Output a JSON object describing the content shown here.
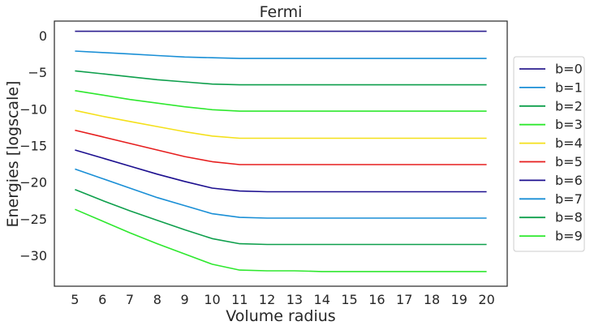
{
  "chart_data": {
    "type": "line",
    "title": "Fermi",
    "xlabel": "Volume radius",
    "ylabel": "Energies [logscale]",
    "x": [
      5,
      6,
      7,
      8,
      9,
      10,
      11,
      12,
      13,
      14,
      15,
      16,
      17,
      18,
      19,
      20
    ],
    "xlim": [
      4.25,
      20.75
    ],
    "ylim": [
      -34.2,
      2.0
    ],
    "xticks": [
      "5",
      "6",
      "7",
      "8",
      "9",
      "10",
      "11",
      "12",
      "13",
      "14",
      "15",
      "16",
      "17",
      "18",
      "19",
      "20"
    ],
    "yticks": [
      {
        "value": 0,
        "label": "0"
      },
      {
        "value": -5,
        "label": "−5"
      },
      {
        "value": -10,
        "label": "−10"
      },
      {
        "value": -15,
        "label": "−15"
      },
      {
        "value": -20,
        "label": "−20"
      },
      {
        "value": -25,
        "label": "−25"
      },
      {
        "value": -30,
        "label": "−30"
      }
    ],
    "grid": false,
    "legend_position": "right-outside",
    "series": [
      {
        "name": "b=0",
        "color": "#2c1e8f",
        "values": [
          0.6,
          0.6,
          0.6,
          0.6,
          0.6,
          0.6,
          0.6,
          0.6,
          0.6,
          0.6,
          0.6,
          0.6,
          0.6,
          0.6,
          0.6,
          0.6
        ]
      },
      {
        "name": "b=1",
        "color": "#1a8fd6",
        "values": [
          -2.1,
          -2.3,
          -2.5,
          -2.7,
          -2.9,
          -3.0,
          -3.1,
          -3.1,
          -3.1,
          -3.1,
          -3.1,
          -3.1,
          -3.1,
          -3.1,
          -3.1,
          -3.1
        ]
      },
      {
        "name": "b=2",
        "color": "#0e9f4c",
        "values": [
          -4.8,
          -5.2,
          -5.6,
          -6.0,
          -6.3,
          -6.6,
          -6.7,
          -6.7,
          -6.7,
          -6.7,
          -6.7,
          -6.7,
          -6.7,
          -6.7,
          -6.7,
          -6.7
        ]
      },
      {
        "name": "b=3",
        "color": "#2ee82e",
        "values": [
          -7.5,
          -8.1,
          -8.7,
          -9.2,
          -9.7,
          -10.1,
          -10.3,
          -10.3,
          -10.3,
          -10.3,
          -10.3,
          -10.3,
          -10.3,
          -10.3,
          -10.3,
          -10.3
        ]
      },
      {
        "name": "b=4",
        "color": "#f4e01a",
        "values": [
          -10.2,
          -11.0,
          -11.7,
          -12.4,
          -13.1,
          -13.7,
          -14.0,
          -14.0,
          -14.0,
          -14.0,
          -14.0,
          -14.0,
          -14.0,
          -14.0,
          -14.0,
          -14.0
        ]
      },
      {
        "name": "b=5",
        "color": "#e61e1e",
        "values": [
          -12.9,
          -13.8,
          -14.7,
          -15.6,
          -16.5,
          -17.2,
          -17.6,
          -17.6,
          -17.6,
          -17.6,
          -17.6,
          -17.6,
          -17.6,
          -17.6,
          -17.6,
          -17.6
        ]
      },
      {
        "name": "b=6",
        "color": "#1c0f8f",
        "values": [
          -15.6,
          -16.7,
          -17.8,
          -18.9,
          -19.9,
          -20.8,
          -21.2,
          -21.3,
          -21.3,
          -21.3,
          -21.3,
          -21.3,
          -21.3,
          -21.3,
          -21.3,
          -21.3
        ]
      },
      {
        "name": "b=7",
        "color": "#1a8fd6",
        "values": [
          -18.2,
          -19.5,
          -20.8,
          -22.1,
          -23.2,
          -24.3,
          -24.8,
          -24.9,
          -24.9,
          -24.9,
          -24.9,
          -24.9,
          -24.9,
          -24.9,
          -24.9,
          -24.9
        ]
      },
      {
        "name": "b=8",
        "color": "#0e9f4c",
        "values": [
          -21.0,
          -22.5,
          -23.9,
          -25.2,
          -26.5,
          -27.7,
          -28.4,
          -28.5,
          -28.5,
          -28.5,
          -28.5,
          -28.5,
          -28.5,
          -28.5,
          -28.5,
          -28.5
        ]
      },
      {
        "name": "b=9",
        "color": "#2ee82e",
        "values": [
          -23.7,
          -25.3,
          -26.9,
          -28.4,
          -29.8,
          -31.2,
          -32.0,
          -32.1,
          -32.1,
          -32.2,
          -32.2,
          -32.2,
          -32.2,
          -32.2,
          -32.2,
          -32.2
        ]
      }
    ]
  }
}
